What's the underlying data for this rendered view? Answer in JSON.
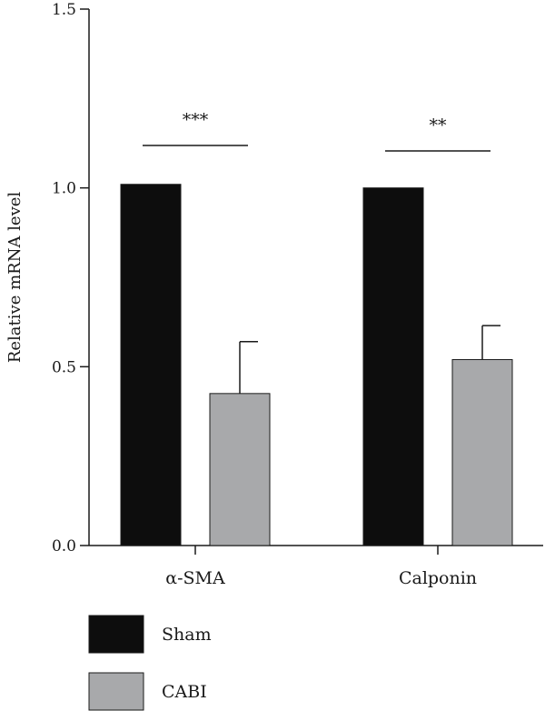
{
  "chart_data": {
    "type": "bar",
    "title": "",
    "xlabel": "",
    "ylabel": "Relative mRNA level",
    "ylim": [
      0,
      1.5
    ],
    "yticks": [
      "0.0",
      "0.5",
      "1.0",
      "1.5"
    ],
    "grid": false,
    "legend_position": "bottom-left",
    "categories": [
      "α-SMA",
      "Calponin"
    ],
    "series": [
      {
        "name": "Sham",
        "color": "#0d0d0d",
        "values": [
          1.01,
          1.0
        ],
        "errors": [
          0,
          0
        ]
      },
      {
        "name": "CABI",
        "color": "#a8a9ab",
        "values": [
          0.425,
          0.52
        ],
        "errors": [
          0.145,
          0.095
        ]
      }
    ],
    "significance": [
      {
        "category_index": 0,
        "label": "***"
      },
      {
        "category_index": 1,
        "label": "**"
      }
    ]
  }
}
